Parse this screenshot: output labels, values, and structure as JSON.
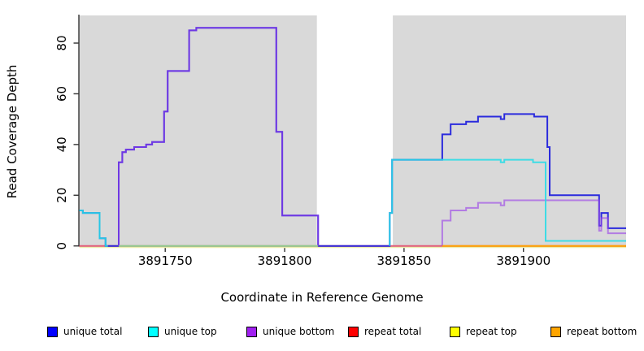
{
  "chart_data": {
    "type": "line",
    "title": "",
    "xlabel": "Coordinate in Reference Genome",
    "ylabel": "Read Coverage Depth",
    "xlim": [
      3891714,
      3891943
    ],
    "ylim": [
      0,
      91
    ],
    "x_ticks": [
      3891750,
      3891800,
      3891850,
      3891900
    ],
    "y_ticks": [
      0,
      20,
      40,
      60,
      80
    ],
    "grid": false,
    "background_color": "#ffffff",
    "covered_region_color": "#D9D9D9",
    "background_regions": [
      {
        "label": "covered-region-left",
        "from": 3891714,
        "to": 3891813.5
      },
      {
        "label": "uncovered-gap",
        "from": 3891813.5,
        "to": 3891845.3
      },
      {
        "label": "covered-region-right",
        "from": 3891845.3,
        "to": 3891943
      }
    ],
    "series": [
      {
        "name": "repeat top",
        "legend_color": "#FFFF00",
        "stroke": "#EDEDB0",
        "opacity": 1,
        "width": 2,
        "dy": 1.5,
        "segments": [
          [
            [
              3891714,
              0
            ],
            [
              3891943,
              0
            ]
          ]
        ]
      },
      {
        "name": "repeat total",
        "legend_color": "#FF0000",
        "stroke": "#E25B78",
        "opacity": 1,
        "width": 2,
        "dy": 0,
        "segments": [
          [
            [
              3891714,
              0
            ],
            [
              3891943,
              0
            ]
          ]
        ]
      },
      {
        "name": "unique total",
        "legend_color": "#0000FF",
        "stroke": "#2222DD",
        "opacity": 0.95,
        "width": 2,
        "dy": 0,
        "segments": [
          [
            [
              3891714,
              14
            ],
            [
              3891715.5,
              13
            ],
            [
              3891722.5,
              3
            ],
            [
              3891725,
              0
            ],
            [
              3891730.5,
              33
            ],
            [
              3891732,
              37
            ],
            [
              3891733.5,
              38
            ],
            [
              3891737,
              39
            ],
            [
              3891742,
              40
            ],
            [
              3891744.5,
              41
            ],
            [
              3891749.5,
              53
            ],
            [
              3891751,
              69
            ],
            [
              3891760,
              85
            ],
            [
              3891763,
              86
            ],
            [
              3891796.5,
              45
            ],
            [
              3891799,
              12
            ],
            [
              3891814,
              0
            ],
            [
              3891844,
              13
            ],
            [
              3891845,
              34
            ],
            [
              3891866,
              44
            ],
            [
              3891869.5,
              48
            ],
            [
              3891876,
              49
            ],
            [
              3891881,
              51
            ],
            [
              3891890.5,
              50
            ],
            [
              3891892,
              52
            ],
            [
              3891904.5,
              51
            ],
            [
              3891910,
              39
            ],
            [
              3891911,
              20
            ],
            [
              3891931.7,
              8
            ],
            [
              3891932.6,
              13
            ],
            [
              3891935.4,
              7
            ],
            [
              3891943,
              7
            ]
          ]
        ]
      },
      {
        "name": "unique bottom",
        "legend_color": "#A020F0",
        "stroke": "#9A40E8",
        "opacity": 0.62,
        "width": 2,
        "dy": 0,
        "segments": [
          [
            [
              3891730.5,
              0
            ],
            [
              3891730.5,
              33
            ],
            [
              3891732,
              37
            ],
            [
              3891733.5,
              38
            ],
            [
              3891737,
              39
            ],
            [
              3891742,
              40
            ],
            [
              3891744.5,
              41
            ],
            [
              3891749.5,
              53
            ],
            [
              3891751,
              69
            ],
            [
              3891760,
              85
            ],
            [
              3891763,
              86
            ],
            [
              3891796.5,
              45
            ],
            [
              3891799,
              12
            ],
            [
              3891814,
              0
            ]
          ],
          [
            [
              3891866,
              0
            ],
            [
              3891866,
              10
            ],
            [
              3891869.5,
              14
            ],
            [
              3891876,
              15
            ],
            [
              3891881,
              17
            ],
            [
              3891890.5,
              16
            ],
            [
              3891892,
              18
            ],
            [
              3891931.7,
              6
            ],
            [
              3891932.6,
              11
            ],
            [
              3891935.4,
              5
            ],
            [
              3891943,
              5
            ]
          ]
        ]
      },
      {
        "name": "unique top",
        "legend_color": "#00FFFF",
        "stroke": "#28DCE6",
        "opacity": 0.88,
        "width": 2,
        "dy": 0,
        "segments": [
          [
            [
              3891714,
              14
            ],
            [
              3891715.5,
              13
            ],
            [
              3891722.5,
              3
            ],
            [
              3891725,
              0
            ],
            [
              3891726,
              0
            ]
          ],
          [
            [
              3891844,
              0
            ],
            [
              3891844,
              13
            ],
            [
              3891845,
              34
            ],
            [
              3891890.5,
              33
            ],
            [
              3891892,
              34
            ],
            [
              3891904,
              33
            ],
            [
              3891909.3,
              2
            ],
            [
              3891943,
              2
            ]
          ]
        ]
      },
      {
        "name": "repeat bottom",
        "legend_color": "#FFA500",
        "stroke": "#FFA500",
        "opacity": 1,
        "width": 2,
        "dy": 0,
        "segments": [
          [
            [
              3891866,
              0
            ],
            [
              3891943,
              0
            ]
          ]
        ]
      }
    ],
    "zero_line_segments": [
      {
        "label": "unique-top-and-repeat-top-at-zero",
        "color": "#8FCE8F",
        "from": 3891730.5,
        "to": 3891814
      }
    ]
  },
  "legend": {
    "items": [
      {
        "label": "unique total",
        "color": "#0000FF"
      },
      {
        "label": "unique top",
        "color": "#00FFFF"
      },
      {
        "label": "unique bottom",
        "color": "#A020F0"
      },
      {
        "label": "repeat total",
        "color": "#FF0000"
      },
      {
        "label": "repeat top",
        "color": "#FFFF00"
      },
      {
        "label": "repeat bottom",
        "color": "#FFA500"
      }
    ]
  }
}
